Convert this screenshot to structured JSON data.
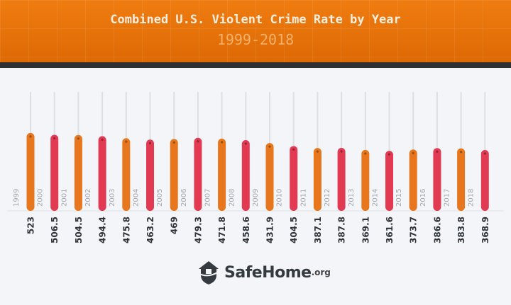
{
  "chart_data": {
    "type": "bar",
    "title": "Combined U.S. Violent Crime Rate by Year",
    "subtitle": "1999-2018",
    "categories": [
      "1999",
      "2000",
      "2001",
      "2002",
      "2003",
      "2004",
      "2005",
      "2006",
      "2007",
      "2008",
      "2009",
      "2010",
      "2011",
      "2012",
      "2013",
      "2014",
      "2015",
      "2016",
      "2017",
      "2018"
    ],
    "values": [
      523,
      506.5,
      504.5,
      494.4,
      475.8,
      463.2,
      469,
      479.3,
      471.8,
      458.6,
      431.9,
      404.5,
      387.1,
      387.8,
      369.1,
      361.6,
      373.7,
      386.6,
      383.8,
      368.9
    ],
    "value_labels": [
      "523",
      "506.5",
      "504.5",
      "494.4",
      "475.8",
      "463.2",
      "469",
      "479.3",
      "471.8",
      "458.6",
      "431.9",
      "404.5",
      "387.1",
      "387.8",
      "369.1",
      "361.6",
      "373.7",
      "386.6",
      "383.8",
      "368.9"
    ],
    "colors": [
      "#e8761c",
      "#e23a52"
    ],
    "grid": false,
    "legend": "none"
  },
  "logo": {
    "name": "SafeHome",
    "tld": ".org",
    "icon": "house-shield-icon"
  }
}
